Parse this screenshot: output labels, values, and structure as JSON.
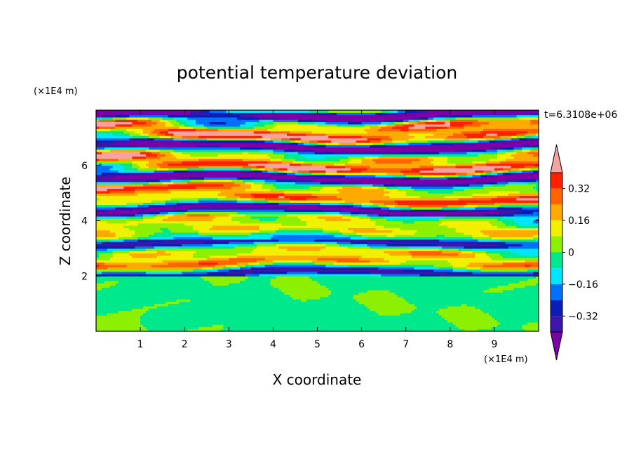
{
  "chart_data": {
    "type": "heatmap",
    "title": "potential temperature deviation",
    "xlabel": "X coordinate",
    "ylabel": "Z coordinate",
    "x_unit": "(×1E4 m)",
    "y_unit": "(×1E4 m)",
    "time_label": "t=6.3108e+06",
    "xlim": [
      0,
      10
    ],
    "ylim": [
      0,
      8
    ],
    "x_ticks": [
      "1",
      "2",
      "3",
      "4",
      "5",
      "6",
      "7",
      "8",
      "9"
    ],
    "y_ticks": [
      "2",
      "4",
      "6"
    ],
    "colorbar": {
      "levels": [
        -0.48,
        -0.4,
        -0.32,
        -0.24,
        -0.16,
        -0.08,
        0,
        0.08,
        0.16,
        0.24,
        0.32,
        0.4,
        0.48
      ],
      "tick_labels": [
        "0.32",
        "0.16",
        "0",
        "−0.16",
        "−0.32"
      ],
      "tick_values": [
        0.32,
        0.16,
        0,
        -0.16,
        -0.32
      ],
      "extend": "both",
      "colors": [
        "#7b00a6",
        "#3b16a8",
        "#0a1eb4",
        "#0070ff",
        "#00e6ff",
        "#00e88c",
        "#8cf000",
        "#f0f000",
        "#ffaa00",
        "#ff6400",
        "#ff2000",
        "#f4a2a2"
      ]
    },
    "layers": [
      {
        "region": "z 0–2",
        "description_values": [
          -0.08,
          0.08
        ]
      },
      {
        "region": "z 2–5",
        "description_values": [
          -0.48,
          0.48
        ]
      },
      {
        "region": "z 5–8",
        "description_values": [
          -0.48,
          0.48
        ]
      }
    ]
  }
}
